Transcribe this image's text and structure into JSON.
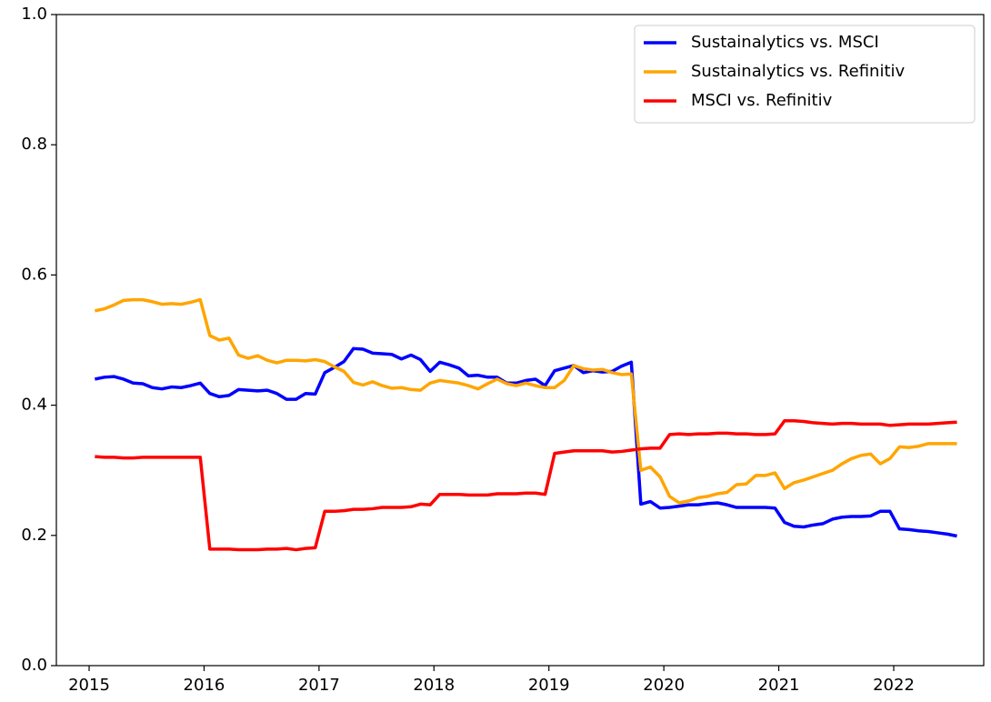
{
  "chart_data": {
    "type": "line",
    "x": [
      2015.05,
      2015.133,
      2015.217,
      2015.3,
      2015.383,
      2015.467,
      2015.55,
      2015.633,
      2015.717,
      2015.8,
      2015.883,
      2015.967,
      2016.05,
      2016.133,
      2016.217,
      2016.3,
      2016.383,
      2016.467,
      2016.55,
      2016.633,
      2016.717,
      2016.8,
      2016.883,
      2016.967,
      2017.05,
      2017.133,
      2017.217,
      2017.3,
      2017.383,
      2017.467,
      2017.55,
      2017.633,
      2017.717,
      2017.8,
      2017.883,
      2017.967,
      2018.05,
      2018.133,
      2018.217,
      2018.3,
      2018.383,
      2018.467,
      2018.55,
      2018.633,
      2018.717,
      2018.8,
      2018.883,
      2018.967,
      2019.05,
      2019.133,
      2019.217,
      2019.3,
      2019.383,
      2019.467,
      2019.55,
      2019.633,
      2019.717,
      2019.8,
      2019.883,
      2019.967,
      2020.05,
      2020.133,
      2020.217,
      2020.3,
      2020.383,
      2020.467,
      2020.55,
      2020.633,
      2020.717,
      2020.8,
      2020.883,
      2020.967,
      2021.05,
      2021.133,
      2021.217,
      2021.3,
      2021.383,
      2021.467,
      2021.55,
      2021.633,
      2021.717,
      2021.8,
      2021.883,
      2021.967,
      2022.05,
      2022.133,
      2022.217,
      2022.3,
      2022.383,
      2022.467,
      2022.55
    ],
    "series": [
      {
        "name": "Sustainalytics vs. MSCI",
        "color": "#0000ff",
        "values": [
          0.44,
          0.443,
          0.444,
          0.44,
          0.434,
          0.433,
          0.427,
          0.425,
          0.428,
          0.427,
          0.43,
          0.434,
          0.418,
          0.413,
          0.415,
          0.424,
          0.423,
          0.422,
          0.423,
          0.418,
          0.409,
          0.409,
          0.418,
          0.417,
          0.45,
          0.458,
          0.467,
          0.487,
          0.486,
          0.48,
          0.479,
          0.478,
          0.471,
          0.477,
          0.47,
          0.452,
          0.466,
          0.462,
          0.457,
          0.445,
          0.446,
          0.443,
          0.443,
          0.434,
          0.434,
          0.438,
          0.44,
          0.43,
          0.453,
          0.457,
          0.461,
          0.45,
          0.453,
          0.451,
          0.452,
          0.46,
          0.466,
          0.248,
          0.252,
          0.242,
          0.243,
          0.245,
          0.247,
          0.247,
          0.249,
          0.25,
          0.247,
          0.243,
          0.243,
          0.243,
          0.243,
          0.242,
          0.22,
          0.214,
          0.213,
          0.216,
          0.218,
          0.225,
          0.228,
          0.229,
          0.229,
          0.23,
          0.237,
          0.237,
          0.21,
          0.209,
          0.207,
          0.206,
          0.204,
          0.202,
          0.199
        ]
      },
      {
        "name": "Sustainalytics vs. Refinitiv",
        "color": "#ffa500",
        "values": [
          0.545,
          0.548,
          0.554,
          0.561,
          0.562,
          0.562,
          0.559,
          0.555,
          0.556,
          0.555,
          0.558,
          0.562,
          0.507,
          0.5,
          0.503,
          0.477,
          0.472,
          0.476,
          0.469,
          0.465,
          0.469,
          0.469,
          0.468,
          0.47,
          0.467,
          0.459,
          0.452,
          0.435,
          0.431,
          0.436,
          0.43,
          0.426,
          0.427,
          0.424,
          0.423,
          0.434,
          0.438,
          0.436,
          0.434,
          0.43,
          0.425,
          0.433,
          0.44,
          0.433,
          0.43,
          0.434,
          0.43,
          0.427,
          0.427,
          0.438,
          0.461,
          0.456,
          0.454,
          0.455,
          0.45,
          0.447,
          0.448,
          0.3,
          0.305,
          0.29,
          0.26,
          0.25,
          0.253,
          0.258,
          0.26,
          0.264,
          0.266,
          0.278,
          0.279,
          0.292,
          0.292,
          0.296,
          0.272,
          0.281,
          0.285,
          0.29,
          0.295,
          0.3,
          0.31,
          0.318,
          0.323,
          0.325,
          0.31,
          0.318,
          0.336,
          0.335,
          0.337,
          0.341,
          0.341,
          0.341,
          0.341
        ]
      },
      {
        "name": "MSCI vs. Refinitiv",
        "color": "#ff0000",
        "values": [
          0.321,
          0.32,
          0.32,
          0.319,
          0.319,
          0.32,
          0.32,
          0.32,
          0.32,
          0.32,
          0.32,
          0.32,
          0.179,
          0.179,
          0.179,
          0.178,
          0.178,
          0.178,
          0.179,
          0.179,
          0.18,
          0.178,
          0.18,
          0.181,
          0.237,
          0.237,
          0.238,
          0.24,
          0.24,
          0.241,
          0.243,
          0.243,
          0.243,
          0.244,
          0.248,
          0.247,
          0.263,
          0.263,
          0.263,
          0.262,
          0.262,
          0.262,
          0.264,
          0.264,
          0.264,
          0.265,
          0.265,
          0.263,
          0.326,
          0.328,
          0.33,
          0.33,
          0.33,
          0.33,
          0.328,
          0.329,
          0.331,
          0.333,
          0.334,
          0.334,
          0.355,
          0.356,
          0.355,
          0.356,
          0.356,
          0.357,
          0.357,
          0.356,
          0.356,
          0.355,
          0.355,
          0.356,
          0.376,
          0.376,
          0.375,
          0.373,
          0.372,
          0.371,
          0.372,
          0.372,
          0.371,
          0.371,
          0.371,
          0.369,
          0.37,
          0.371,
          0.371,
          0.371,
          0.372,
          0.373,
          0.374
        ]
      }
    ],
    "xlim": [
      2014.715,
      2022.783
    ],
    "xticks": [
      2015,
      2016,
      2017,
      2018,
      2019,
      2020,
      2021,
      2022
    ],
    "ylim": [
      0,
      1
    ],
    "yticks": [
      {
        "value": 0,
        "label": "0.0"
      },
      0.2,
      0.4,
      0.6,
      0.8,
      {
        "value": 1,
        "label": "1.0"
      }
    ],
    "legend": "upper right"
  }
}
